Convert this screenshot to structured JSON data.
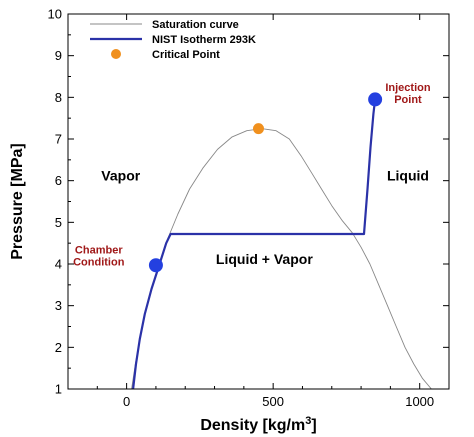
{
  "chart_data": {
    "type": "line",
    "xlabel": "Density [kg/m",
    "xlabel_sup": "3",
    "xlabel_tail": "]",
    "ylabel": "Pressure [MPa]",
    "xlim": [
      -200,
      1100
    ],
    "ylim": [
      1,
      10
    ],
    "xticks": [
      0,
      500,
      1000
    ],
    "yticks": [
      1,
      2,
      3,
      4,
      5,
      6,
      7,
      8,
      9,
      10
    ],
    "grid": false,
    "legend_placement": "top-left",
    "series": [
      {
        "name": "Saturation curve",
        "style": "thin-line",
        "color": "#888888",
        "x": [
          17,
          30,
          45,
          62,
          85,
          110,
          140,
          175,
          215,
          260,
          310,
          360,
          410,
          460,
          510,
          555,
          595,
          630,
          665,
          700,
          735,
          770,
          800,
          830,
          860,
          890,
          920,
          950,
          980,
          1010,
          1040,
          1070
        ],
        "y": [
          1.0,
          1.6,
          2.2,
          2.8,
          3.4,
          4.0,
          4.6,
          5.2,
          5.8,
          6.3,
          6.75,
          7.05,
          7.2,
          7.25,
          7.2,
          7.0,
          6.6,
          6.2,
          5.8,
          5.4,
          5.05,
          4.75,
          4.4,
          4.0,
          3.5,
          3.0,
          2.5,
          2.0,
          1.6,
          1.25,
          1.0,
          0.7
        ]
      },
      {
        "name": "NIST Isotherm 293K",
        "style": "thick-line",
        "color": "#2b32a8",
        "x": [
          22,
          32,
          45,
          62,
          85,
          110,
          135,
          150,
          810,
          822,
          832,
          842,
          848
        ],
        "y": [
          1.0,
          1.6,
          2.2,
          2.8,
          3.4,
          3.95,
          4.5,
          4.72,
          4.72,
          5.8,
          6.8,
          7.6,
          7.95
        ]
      }
    ],
    "markers": [
      {
        "name": "Critical Point",
        "x": 450,
        "y": 7.25,
        "color": "#f0901e",
        "r": 5.5
      },
      {
        "name": "Chamber Condition",
        "x": 100,
        "y": 3.97,
        "color": "#2440e0",
        "r": 7
      },
      {
        "name": "Injection Point",
        "x": 848,
        "y": 7.95,
        "color": "#2440e0",
        "r": 7
      }
    ],
    "regions": [
      {
        "text": "Vapor",
        "x": -20,
        "y": 6.0
      },
      {
        "text": "Liquid",
        "x": 960,
        "y": 6.0
      },
      {
        "text": "Liquid + Vapor",
        "x": 470,
        "y": 4.0
      }
    ],
    "annotations": [
      {
        "lines": [
          "Chamber",
          "Condition"
        ],
        "x": -95,
        "y": 4.25,
        "anchor": "middle"
      },
      {
        "lines": [
          "Injection",
          "Point"
        ],
        "x": 960,
        "y": 8.15,
        "anchor": "middle"
      }
    ]
  }
}
